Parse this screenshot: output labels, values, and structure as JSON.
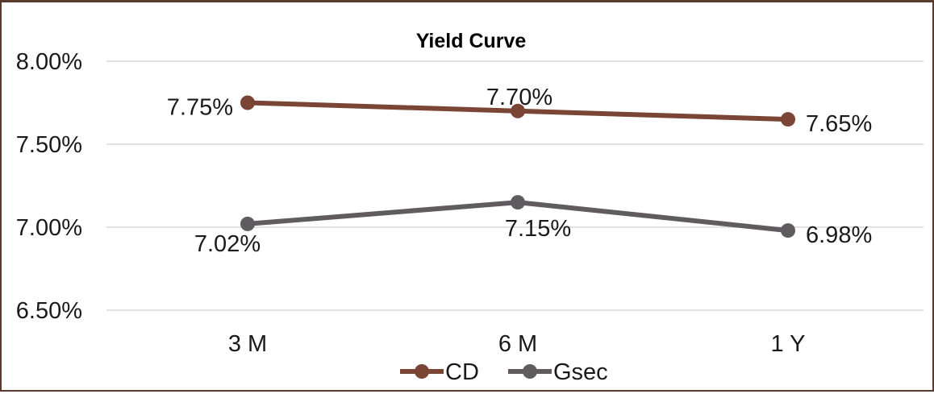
{
  "chart_data": {
    "type": "line",
    "title": "Yield Curve",
    "categories": [
      "3 M",
      "6 M",
      "1 Y"
    ],
    "series": [
      {
        "name": "CD",
        "values": [
          7.75,
          7.7,
          7.65
        ],
        "labels": [
          "7.75%",
          "7.70%",
          "7.65%"
        ],
        "color": "#7b4535"
      },
      {
        "name": "Gsec",
        "values": [
          7.02,
          7.15,
          6.98
        ],
        "labels": [
          "7.02%",
          "7.15%",
          "6.98%"
        ],
        "color": "#5f5b5e"
      }
    ],
    "y_ticks": [
      {
        "value": 8.0,
        "label": "8.00%"
      },
      {
        "value": 7.5,
        "label": "7.50%"
      },
      {
        "value": 7.0,
        "label": "7.00%"
      },
      {
        "value": 6.5,
        "label": "6.50%"
      }
    ],
    "ylim": [
      6.5,
      8.0
    ],
    "grid": true,
    "legend_position": "bottom",
    "xlabel": "",
    "ylabel": ""
  }
}
